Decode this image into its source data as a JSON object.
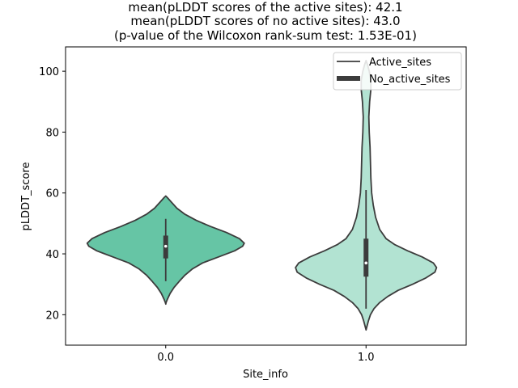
{
  "chart_data": {
    "type": "violin",
    "title_lines": [
      "mean(pLDDT scores of the active sites): 42.1",
      "mean(pLDDT scores of no active sites): 43.0",
      "(p-value of the Wilcoxon rank-sum test: 1.53E-01)"
    ],
    "xlabel": "Site_info",
    "ylabel": "pLDDT_score",
    "categories": [
      "0.0",
      "1.0"
    ],
    "ylim": [
      10,
      108
    ],
    "yticks": [
      20,
      40,
      60,
      80,
      100
    ],
    "legend": {
      "position": "top-right",
      "entries": [
        {
          "label": "Active_sites",
          "style": "thin-line"
        },
        {
          "label": "No_active_sites",
          "style": "thick-line"
        }
      ]
    },
    "colors": {
      "violin_0": "#66c5a5",
      "violin_1": "#b2e3d2",
      "outline": "#3c3c3c",
      "box": "#3c3c3c",
      "median": "#ffffff"
    },
    "violins": [
      {
        "category": "0.0",
        "median": 42.5,
        "q1": 38.5,
        "q3": 46,
        "whisker_low": 31,
        "whisker_high": 51.5,
        "profile": [
          [
            23.5,
            0.0
          ],
          [
            24.0,
            0.5
          ],
          [
            25.0,
            2.0
          ],
          [
            27.0,
            5.5
          ],
          [
            29.0,
            10.5
          ],
          [
            31.0,
            17.0
          ],
          [
            33.0,
            24.0
          ],
          [
            35.0,
            33.0
          ],
          [
            37.0,
            46.0
          ],
          [
            39.0,
            66.0
          ],
          [
            41.0,
            86.0
          ],
          [
            42.5,
            96.0
          ],
          [
            43.5,
            98.0
          ],
          [
            45.0,
            92.0
          ],
          [
            47.0,
            76.0
          ],
          [
            49.0,
            56.0
          ],
          [
            51.0,
            38.0
          ],
          [
            53.0,
            24.0
          ],
          [
            55.0,
            14.0
          ],
          [
            57.0,
            7.0
          ],
          [
            58.5,
            2.0
          ],
          [
            59.0,
            0.0
          ]
        ]
      },
      {
        "category": "1.0",
        "median": 37,
        "q1": 32.5,
        "q3": 45,
        "whisker_low": 22,
        "whisker_high": 61,
        "profile": [
          [
            15.0,
            0.0
          ],
          [
            16.0,
            1.0
          ],
          [
            18.0,
            3.0
          ],
          [
            20.0,
            5.5
          ],
          [
            22.0,
            10.0
          ],
          [
            24.0,
            17.0
          ],
          [
            26.0,
            27.0
          ],
          [
            28.0,
            40.0
          ],
          [
            30.0,
            58.0
          ],
          [
            32.0,
            74.0
          ],
          [
            34.0,
            86.0
          ],
          [
            35.5,
            88.0
          ],
          [
            37.0,
            84.0
          ],
          [
            39.0,
            70.0
          ],
          [
            41.0,
            52.0
          ],
          [
            43.0,
            36.0
          ],
          [
            45.0,
            25.0
          ],
          [
            48.0,
            17.0
          ],
          [
            52.0,
            12.0
          ],
          [
            56.0,
            9.0
          ],
          [
            60.0,
            7.0
          ],
          [
            65.0,
            6.0
          ],
          [
            70.0,
            5.5
          ],
          [
            75.0,
            5.0
          ],
          [
            80.0,
            4.0
          ],
          [
            85.0,
            3.5
          ],
          [
            90.0,
            4.5
          ],
          [
            94.0,
            6.0
          ],
          [
            97.0,
            6.0
          ],
          [
            100.0,
            4.0
          ],
          [
            102.0,
            2.0
          ],
          [
            103.5,
            0.0
          ]
        ]
      }
    ]
  }
}
